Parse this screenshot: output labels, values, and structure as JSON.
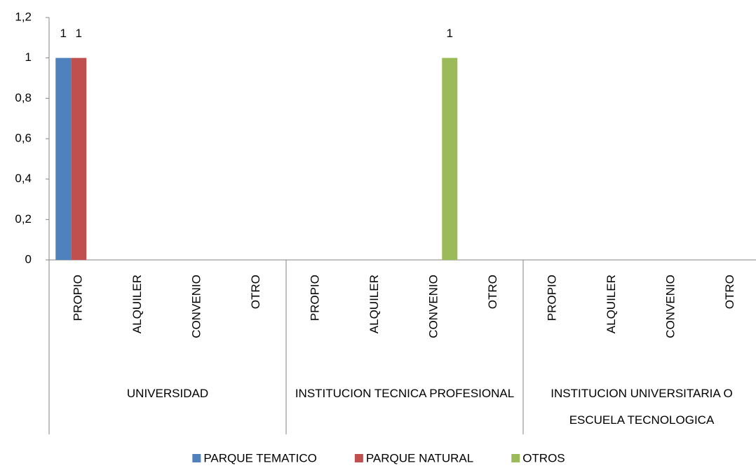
{
  "chart_data": {
    "type": "bar",
    "groups": [
      {
        "label": "UNIVERSIDAD",
        "categories": [
          "PROPIO",
          "ALQUILER",
          "CONVENIO",
          "OTRO"
        ]
      },
      {
        "label": "INSTITUCION TECNICA PROFESIONAL",
        "categories": [
          "PROPIO",
          "ALQUILER",
          "CONVENIO",
          "OTRO"
        ]
      },
      {
        "label": "INSTITUCION UNIVERSITARIA O ESCUELA TECNOLOGICA",
        "categories": [
          "PROPIO",
          "ALQUILER",
          "CONVENIO",
          "OTRO"
        ]
      }
    ],
    "series": [
      {
        "name": "PARQUE TEMATICO",
        "color": "#4f81bd",
        "values": [
          1,
          null,
          null,
          null,
          null,
          null,
          null,
          null,
          null,
          null,
          null,
          null
        ]
      },
      {
        "name": "PARQUE NATURAL",
        "color": "#c0504d",
        "values": [
          1,
          null,
          null,
          null,
          null,
          null,
          null,
          null,
          null,
          null,
          null,
          null
        ]
      },
      {
        "name": "OTROS",
        "color": "#9bbb59",
        "values": [
          null,
          null,
          null,
          null,
          null,
          null,
          1,
          null,
          null,
          null,
          null,
          null
        ]
      }
    ],
    "ylim": [
      0,
      1.2
    ],
    "yticks": [
      0,
      {
        "value": 0.2,
        "label": "0,2"
      },
      {
        "value": 0.4,
        "label": "0,4"
      },
      {
        "value": 0.6,
        "label": "0,6"
      },
      {
        "value": 0.8,
        "label": "0,8"
      },
      1,
      {
        "value": 1.2,
        "label": "1,2"
      }
    ],
    "grid": false,
    "data_labels": true,
    "legend": "bottom"
  }
}
